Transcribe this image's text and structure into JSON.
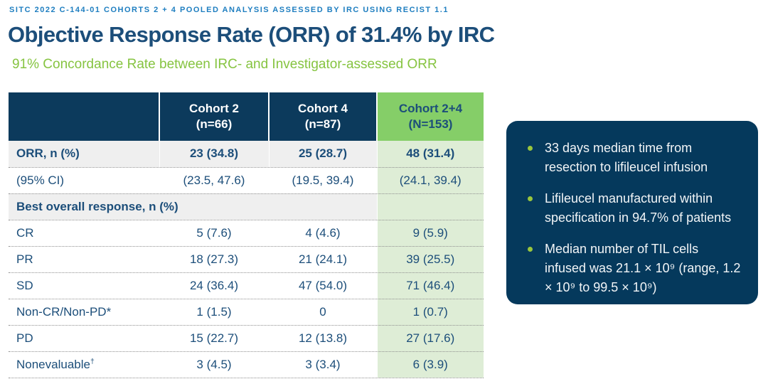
{
  "page": {
    "eyebrow": "SITC 2022 C-144-01 COHORTS 2 + 4 POOLED ANALYSIS ASSESSED BY IRC USING RECIST 1.1",
    "title": "Objective Response Rate (ORR) of 31.4% by IRC",
    "subtitle": "91% Concordance Rate between IRC- and Investigator-assessed ORR"
  },
  "table": {
    "col_headers": [
      {
        "line1": "Cohort 2",
        "line2": "(n=66)",
        "highlight": false
      },
      {
        "line1": "Cohort 4",
        "line2": "(n=87)",
        "highlight": false
      },
      {
        "line1": "Cohort 2+4",
        "line2": "(N=153)",
        "highlight": true
      }
    ],
    "rows": [
      {
        "label": "ORR, n (%)",
        "sup": "",
        "values": [
          "23 (34.8)",
          "25 (28.7)",
          "48 (31.4)"
        ],
        "bold": true,
        "shaded": true,
        "section": false
      },
      {
        "label": "(95% CI)",
        "sup": "",
        "values": [
          "(23.5, 47.6)",
          "(19.5, 39.4)",
          "(24.1, 39.4)"
        ],
        "bold": false,
        "shaded": false,
        "section": false
      },
      {
        "label": "Best overall response, n (%)",
        "sup": "",
        "values": [
          "",
          "",
          ""
        ],
        "bold": true,
        "shaded": true,
        "section": true
      },
      {
        "label": "CR",
        "sup": "",
        "values": [
          "5 (7.6)",
          "4 (4.6)",
          "9 (5.9)"
        ],
        "bold": false,
        "shaded": false,
        "section": false
      },
      {
        "label": "PR",
        "sup": "",
        "values": [
          "18 (27.3)",
          "21 (24.1)",
          "39 (25.5)"
        ],
        "bold": false,
        "shaded": false,
        "section": false
      },
      {
        "label": "SD",
        "sup": "",
        "values": [
          "24 (36.4)",
          "47 (54.0)",
          "71 (46.4)"
        ],
        "bold": false,
        "shaded": false,
        "section": false
      },
      {
        "label": "Non-CR/Non-PD*",
        "sup": "",
        "values": [
          "1 (1.5)",
          "0",
          "1 (0.7)"
        ],
        "bold": false,
        "shaded": false,
        "section": false
      },
      {
        "label": "PD",
        "sup": "",
        "values": [
          "15 (22.7)",
          "12 (13.8)",
          "27 (17.6)"
        ],
        "bold": false,
        "shaded": false,
        "section": false
      },
      {
        "label": "Nonevaluable",
        "sup": "†",
        "values": [
          "3 (4.5)",
          "3 (3.4)",
          "6 (3.9)"
        ],
        "bold": false,
        "shaded": false,
        "section": false
      }
    ]
  },
  "callout": {
    "bullets": [
      "33 days median time from resection to lifileucel infusion",
      "Lifileucel manufactured within specification in 94.7% of patients",
      "Median number of TIL cells infused was 21.1 × 10⁹ (range, 1.2 × 10⁹ to 99.5 × 10⁹)"
    ]
  },
  "colors": {
    "bg": "#FFFFFF",
    "eyebrow_blue": "#1E7EC0",
    "title_blue": "#1C4E7A",
    "accent_green": "#86C441",
    "navy": "#0C3A5C",
    "panel_navy": "#05395C",
    "text_navy": "#1C4E7A",
    "header_green": "#85CE68",
    "cell_green": "#DEEDD6",
    "bullet_green": "#9AC63D"
  }
}
